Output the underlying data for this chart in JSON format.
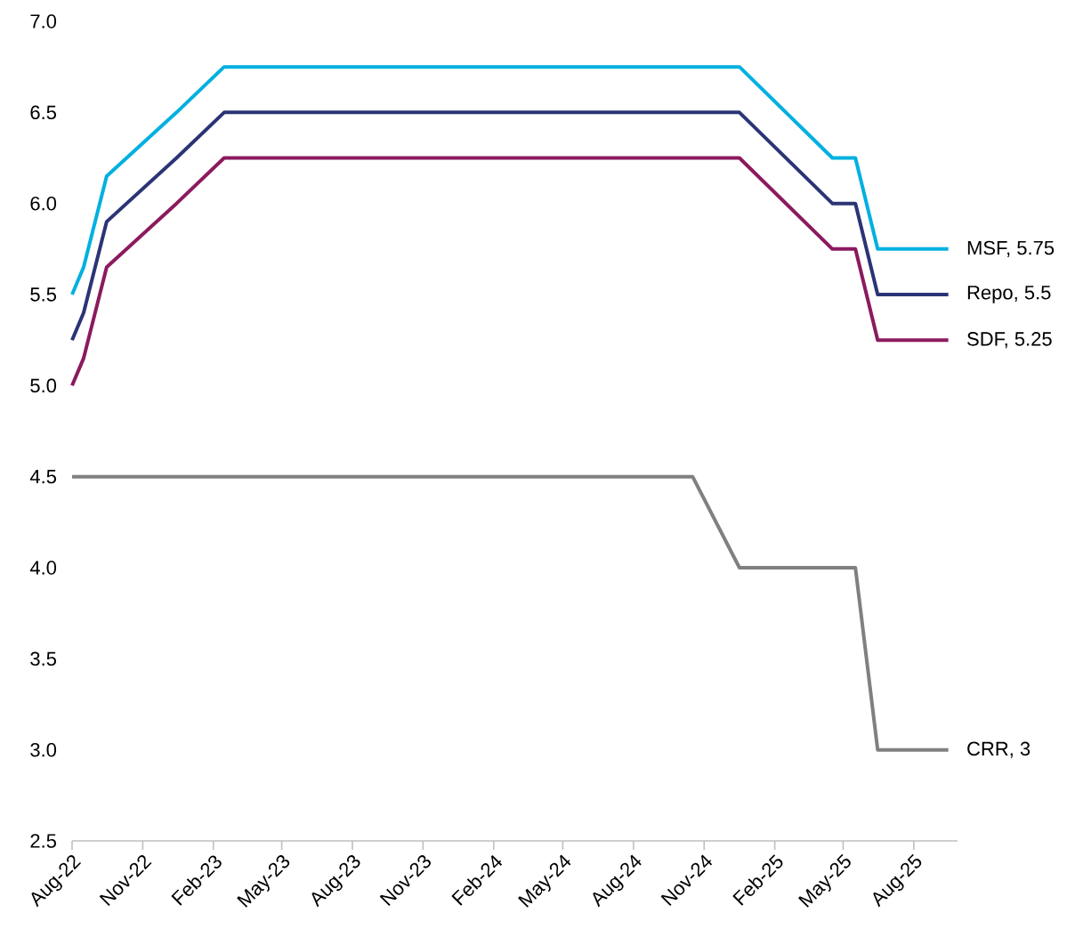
{
  "chart_data": {
    "type": "line",
    "xlim": [
      "2022-08-01",
      "2025-09-27"
    ],
    "ylim": [
      2.5,
      7.0
    ],
    "yticks": [
      2.5,
      {
        "value": 3.0,
        "label": "3.0"
      },
      3.5,
      {
        "value": 4.0,
        "label": "4.0"
      },
      4.5,
      {
        "value": 5.0,
        "label": "5.0"
      },
      5.5,
      {
        "value": 6.0,
        "label": "6.0"
      },
      6.5,
      {
        "value": 7.0,
        "label": "7.0"
      }
    ],
    "xticks": [
      {
        "value": "2022-08-01",
        "label": "Aug-22"
      },
      {
        "value": "2022-11-01",
        "label": "Nov-22"
      },
      {
        "value": "2023-02-01",
        "label": "Feb-23"
      },
      {
        "value": "2023-05-01",
        "label": "May-23"
      },
      {
        "value": "2023-08-01",
        "label": "Aug-23"
      },
      {
        "value": "2023-11-01",
        "label": "Nov-23"
      },
      {
        "value": "2024-02-01",
        "label": "Feb-24"
      },
      {
        "value": "2024-05-01",
        "label": "May-24"
      },
      {
        "value": "2024-08-01",
        "label": "Aug-24"
      },
      {
        "value": "2024-11-01",
        "label": "Nov-24"
      },
      {
        "value": "2025-02-01",
        "label": "Feb-25"
      },
      {
        "value": "2025-05-01",
        "label": "May-25"
      },
      {
        "value": "2025-08-01",
        "label": "Aug-25"
      }
    ],
    "grid": false,
    "legend": false,
    "marker": "none",
    "line_style": "solid",
    "series": [
      {
        "name": "MSF, 5.75",
        "color": "#00b0e0",
        "x": [
          "2022-08-01",
          "2022-08-16",
          "2022-09-15",
          "2022-12-15",
          "2023-02-15",
          "2024-12-17",
          "2025-04-17",
          "2025-05-17",
          "2025-06-15",
          "2025-09-15"
        ],
        "values": [
          5.5,
          5.65,
          6.15,
          6.5,
          6.75,
          6.75,
          6.25,
          6.25,
          5.75,
          5.75
        ]
      },
      {
        "name": "Repo, 5.5",
        "color": "#2b3475",
        "x": [
          "2022-08-01",
          "2022-08-16",
          "2022-09-15",
          "2022-12-15",
          "2023-02-15",
          "2024-12-17",
          "2025-04-17",
          "2025-05-17",
          "2025-06-15",
          "2025-09-15"
        ],
        "values": [
          5.25,
          5.4,
          5.9,
          6.25,
          6.5,
          6.5,
          6.0,
          6.0,
          5.5,
          5.5
        ]
      },
      {
        "name": "SDF, 5.25",
        "color": "#8b1a5e",
        "x": [
          "2022-08-01",
          "2022-08-16",
          "2022-09-15",
          "2022-12-15",
          "2023-02-15",
          "2024-12-17",
          "2025-04-17",
          "2025-05-17",
          "2025-06-15",
          "2025-09-15"
        ],
        "values": [
          5.0,
          5.15,
          5.65,
          6.0,
          6.25,
          6.25,
          5.75,
          5.75,
          5.25,
          5.25
        ]
      },
      {
        "name": "CRR, 3",
        "color": "#808080",
        "x": [
          "2022-08-01",
          "2024-10-17",
          "2024-12-17",
          "2025-05-17",
          "2025-06-15",
          "2025-09-15"
        ],
        "values": [
          4.5,
          4.5,
          4.0,
          4.0,
          3.0,
          3.0
        ]
      }
    ]
  }
}
